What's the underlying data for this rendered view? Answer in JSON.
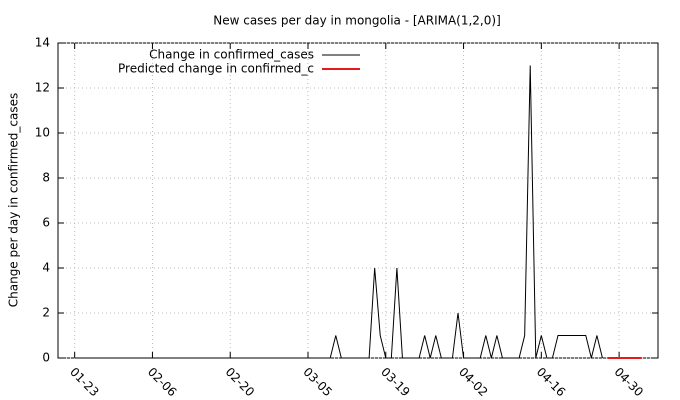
{
  "chart_data": {
    "type": "line",
    "title": "New cases per day in mongolia -  [ARIMA(1,2,0)]",
    "y_label": "Change per day in confirmed_cases",
    "x": [
      "01-23",
      "01-24",
      "01-25",
      "01-26",
      "01-27",
      "01-28",
      "01-29",
      "01-30",
      "01-31",
      "02-01",
      "02-02",
      "02-03",
      "02-04",
      "02-05",
      "02-06",
      "02-07",
      "02-08",
      "02-09",
      "02-10",
      "02-11",
      "02-12",
      "02-13",
      "02-14",
      "02-15",
      "02-16",
      "02-17",
      "02-18",
      "02-19",
      "02-20",
      "02-21",
      "02-22",
      "02-23",
      "02-24",
      "02-25",
      "02-26",
      "02-27",
      "02-28",
      "02-29",
      "03-01",
      "03-02",
      "03-03",
      "03-04",
      "03-05",
      "03-06",
      "03-07",
      "03-08",
      "03-09",
      "03-10",
      "03-11",
      "03-12",
      "03-13",
      "03-14",
      "03-15",
      "03-16",
      "03-17",
      "03-18",
      "03-19",
      "03-20",
      "03-21",
      "03-22",
      "03-23",
      "03-24",
      "03-25",
      "03-26",
      "03-27",
      "03-28",
      "03-29",
      "03-30",
      "03-31",
      "04-01",
      "04-02",
      "04-03",
      "04-04",
      "04-05",
      "04-06",
      "04-07",
      "04-08",
      "04-09",
      "04-10",
      "04-11",
      "04-12",
      "04-13",
      "04-14",
      "04-15",
      "04-16",
      "04-17",
      "04-18",
      "04-19",
      "04-20",
      "04-21",
      "04-22",
      "04-23",
      "04-24",
      "04-25",
      "04-26",
      "04-27",
      "04-28",
      "04-29",
      "04-30",
      "05-01",
      "05-02",
      "05-03",
      "05-04"
    ],
    "series": [
      {
        "name": "Change in confirmed_cases",
        "color": "#000000",
        "values": [
          0,
          0,
          0,
          0,
          0,
          0,
          0,
          0,
          0,
          0,
          0,
          0,
          0,
          0,
          0,
          0,
          0,
          0,
          0,
          0,
          0,
          0,
          0,
          0,
          0,
          0,
          0,
          0,
          0,
          0,
          0,
          0,
          0,
          0,
          0,
          0,
          0,
          0,
          0,
          0,
          0,
          0,
          0,
          0,
          0,
          0,
          0,
          1,
          0,
          0,
          0,
          0,
          0,
          0,
          4,
          1,
          0,
          0,
          4,
          0,
          0,
          0,
          0,
          1,
          0,
          1,
          0,
          0,
          0,
          2,
          0,
          0,
          0,
          0,
          1,
          0,
          1,
          0,
          0,
          0,
          0,
          1,
          13,
          0,
          1,
          0,
          0,
          1,
          1,
          1,
          1,
          1,
          1,
          0,
          1,
          0,
          null,
          null,
          null,
          null,
          null,
          null,
          null
        ]
      },
      {
        "name": "Predicted change in confirmed_c",
        "color": "#e41a1c",
        "values": [
          null,
          null,
          null,
          null,
          null,
          null,
          null,
          null,
          null,
          null,
          null,
          null,
          null,
          null,
          null,
          null,
          null,
          null,
          null,
          null,
          null,
          null,
          null,
          null,
          null,
          null,
          null,
          null,
          null,
          null,
          null,
          null,
          null,
          null,
          null,
          null,
          null,
          null,
          null,
          null,
          null,
          null,
          null,
          null,
          null,
          null,
          null,
          null,
          null,
          null,
          null,
          null,
          null,
          null,
          null,
          null,
          null,
          null,
          null,
          null,
          null,
          null,
          null,
          null,
          null,
          null,
          null,
          null,
          null,
          null,
          null,
          null,
          null,
          null,
          null,
          null,
          null,
          null,
          null,
          null,
          null,
          null,
          null,
          null,
          null,
          null,
          null,
          null,
          null,
          null,
          null,
          null,
          null,
          null,
          null,
          null,
          0,
          0,
          0,
          0,
          0,
          0,
          0
        ]
      }
    ],
    "xlim": [
      "01-20",
      "05-07"
    ],
    "xticks": [
      "01-23",
      "02-06",
      "02-20",
      "03-05",
      "03-19",
      "04-02",
      "04-16",
      "04-30"
    ],
    "ylim": [
      0,
      14
    ],
    "yticks": [
      0,
      2,
      4,
      6,
      8,
      10,
      12,
      14
    ],
    "grid": true,
    "legend": "top-left"
  }
}
